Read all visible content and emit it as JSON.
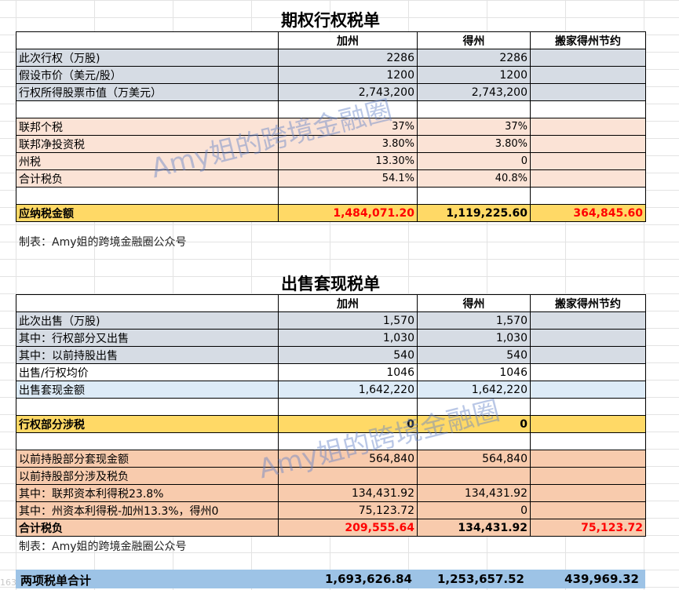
{
  "table1": {
    "title": "期权行权税单",
    "headers": [
      "",
      "加州",
      "得州",
      "搬家得州节约"
    ],
    "rows": [
      {
        "label": "此次行权（万股)",
        "ca": "2286",
        "tx": "2286",
        "save": "",
        "style": "gray"
      },
      {
        "label": "假设市价（美元/股）",
        "ca": "1200",
        "tx": "1200",
        "save": "",
        "style": "gray"
      },
      {
        "label": "行权所得股票市值（万美元）",
        "ca": "2,743,200",
        "tx": "2,743,200",
        "save": "",
        "style": "gray"
      },
      {
        "label": "",
        "ca": "",
        "tx": "",
        "save": "",
        "style": "white"
      },
      {
        "label": "联邦个税",
        "ca": "37%",
        "tx": "37%",
        "save": "",
        "style": "lightpeach"
      },
      {
        "label": "联邦净投资税",
        "ca": "3.80%",
        "tx": "3.80%",
        "save": "",
        "style": "lightpeach"
      },
      {
        "label": "州税",
        "ca": "13.30%",
        "tx": "0",
        "save": "",
        "style": "lightpeach"
      },
      {
        "label": "合计税负",
        "ca": "54.1%",
        "tx": "40.8%",
        "save": "",
        "style": "lightpeach"
      },
      {
        "label": "",
        "ca": "",
        "tx": "",
        "save": "",
        "style": "white"
      },
      {
        "label": "应纳税金额",
        "ca": "1,484,071.20",
        "tx": "1,119,225.60",
        "save": "364,845.60",
        "style": "yellow"
      }
    ],
    "note": "制表：Amy姐的跨境金融圈公众号"
  },
  "table2": {
    "title": "出售套现税单",
    "headers": [
      "",
      "加州",
      "得州",
      "搬家得州节约"
    ],
    "rows": [
      {
        "label": "此次出售（万股)",
        "ca": "1,570",
        "tx": "1,570",
        "save": "",
        "style": "gray"
      },
      {
        "label": "其中：行权部分又出售",
        "ca": "1,030",
        "tx": "1,030",
        "save": "",
        "style": "gray"
      },
      {
        "label": "其中：以前持股出售",
        "ca": "540",
        "tx": "540",
        "save": "",
        "style": "gray"
      },
      {
        "label": "出售/行权均价",
        "ca": "1046",
        "tx": "1046",
        "save": "",
        "style": "white"
      },
      {
        "label": "出售套现金额",
        "ca": "1,642,220",
        "tx": "1,642,220",
        "save": "",
        "style": "blue"
      },
      {
        "label": "",
        "ca": "",
        "tx": "",
        "save": "",
        "style": "white"
      },
      {
        "label": "行权部分涉税",
        "ca": "0",
        "tx": "0",
        "save": "",
        "style": "yellow"
      },
      {
        "label": "",
        "ca": "",
        "tx": "",
        "save": "",
        "style": "white"
      },
      {
        "label": "以前持股部分套现金额",
        "ca": "564,840",
        "tx": "564,840",
        "save": "",
        "style": "peach"
      },
      {
        "label": "以前持股部分涉及税负",
        "ca": "",
        "tx": "",
        "save": "",
        "style": "peach"
      },
      {
        "label": "其中：联邦资本利得税23.8%",
        "ca": "134,431.92",
        "tx": "134,431.92",
        "save": "",
        "style": "peach"
      },
      {
        "label": "其中：州资本利得税-加州13.3%，得州0",
        "ca": "75,123.72",
        "tx": "0",
        "save": "",
        "style": "peach"
      },
      {
        "label": "合计税负",
        "ca": "209,555.64",
        "tx": "134,431.92",
        "save": "75,123.72",
        "style": "total"
      }
    ],
    "note": "制表：Amy姐的跨境金融圈公众号"
  },
  "grand_total": {
    "label": "两项税单合计",
    "ca": "1,693,626.84",
    "tx": "1,253,657.52",
    "save": "439,969.32"
  },
  "watermark": "Amy姐的跨境金融圈",
  "corner_mark": "163",
  "colors": {
    "gray": "#d6dce4",
    "peach": "#f8cbad",
    "blue": "#ddebf7",
    "yellow": "#ffd966",
    "grand": "#9dc3e6",
    "red": "#ff0000"
  }
}
